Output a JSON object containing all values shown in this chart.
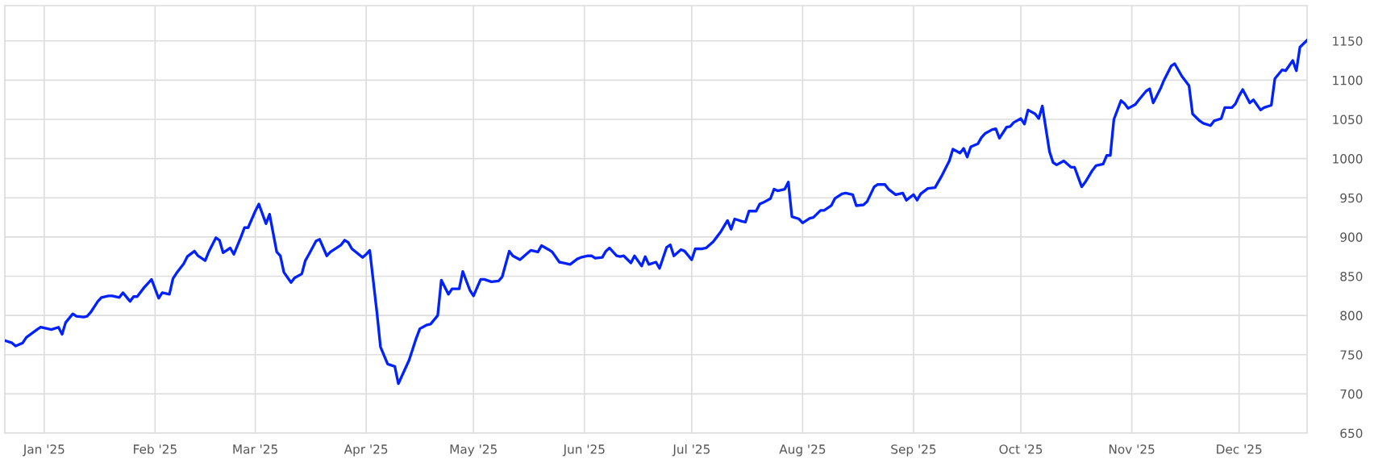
{
  "chart_data": {
    "type": "line",
    "x": [
      "2024-12-21",
      "2024-12-23",
      "2024-12-24",
      "2024-12-26",
      "2024-12-27",
      "2024-12-30",
      "2024-12-31",
      "2025-01-02",
      "2025-01-03",
      "2025-01-05",
      "2025-01-06",
      "2025-01-07",
      "2025-01-09",
      "2025-01-10",
      "2025-01-12",
      "2025-01-13",
      "2025-01-14",
      "2025-01-16",
      "2025-01-17",
      "2025-01-19",
      "2025-01-20",
      "2025-01-22",
      "2025-01-23",
      "2025-01-25",
      "2025-01-26",
      "2025-01-27",
      "2025-01-29",
      "2025-01-30",
      "2025-01-31",
      "2025-02-02",
      "2025-02-03",
      "2025-02-05",
      "2025-02-06",
      "2025-02-07",
      "2025-02-09",
      "2025-02-10",
      "2025-02-12",
      "2025-02-13",
      "2025-02-15",
      "2025-02-16",
      "2025-02-18",
      "2025-02-19",
      "2025-02-20",
      "2025-02-22",
      "2025-02-23",
      "2025-02-25",
      "2025-02-26",
      "2025-02-27",
      "2025-03-01",
      "2025-03-02",
      "2025-03-04",
      "2025-03-05",
      "2025-03-07",
      "2025-03-08",
      "2025-03-09",
      "2025-03-11",
      "2025-03-12",
      "2025-03-14",
      "2025-03-15",
      "2025-03-16",
      "2025-03-18",
      "2025-03-19",
      "2025-03-21",
      "2025-03-22",
      "2025-03-24",
      "2025-03-25",
      "2025-03-26",
      "2025-03-27",
      "2025-03-28",
      "2025-03-31",
      "2025-04-01",
      "2025-04-02",
      "2025-04-04",
      "2025-04-05",
      "2025-04-07",
      "2025-04-09",
      "2025-04-10",
      "2025-04-12",
      "2025-04-13",
      "2025-04-15",
      "2025-04-16",
      "2025-04-18",
      "2025-04-19",
      "2025-04-21",
      "2025-04-22",
      "2025-04-24",
      "2025-04-25",
      "2025-04-27",
      "2025-04-28",
      "2025-04-30",
      "2025-05-01",
      "2025-05-03",
      "2025-05-04",
      "2025-05-06",
      "2025-05-08",
      "2025-05-09",
      "2025-05-11",
      "2025-05-12",
      "2025-05-14",
      "2025-05-16",
      "2025-05-17",
      "2025-05-19",
      "2025-05-20",
      "2025-05-22",
      "2025-05-23",
      "2025-05-25",
      "2025-05-26",
      "2025-05-28",
      "2025-05-30",
      "2025-05-31",
      "2025-06-02",
      "2025-06-03",
      "2025-06-04",
      "2025-06-06",
      "2025-06-07",
      "2025-06-08",
      "2025-06-10",
      "2025-06-11",
      "2025-06-12",
      "2025-06-14",
      "2025-06-15",
      "2025-06-17",
      "2025-06-18",
      "2025-06-19",
      "2025-06-21",
      "2025-06-22",
      "2025-06-24",
      "2025-06-25",
      "2025-06-26",
      "2025-06-28",
      "2025-06-29",
      "2025-07-01",
      "2025-07-02",
      "2025-07-04",
      "2025-07-05",
      "2025-07-07",
      "2025-07-08",
      "2025-07-09",
      "2025-07-11",
      "2025-07-12",
      "2025-07-13",
      "2025-07-15",
      "2025-07-16",
      "2025-07-17",
      "2025-07-19",
      "2025-07-20",
      "2025-07-21",
      "2025-07-23",
      "2025-07-24",
      "2025-07-25",
      "2025-07-27",
      "2025-07-28",
      "2025-07-29",
      "2025-07-31",
      "2025-08-01",
      "2025-08-03",
      "2025-08-04",
      "2025-08-06",
      "2025-08-07",
      "2025-08-09",
      "2025-08-10",
      "2025-08-12",
      "2025-08-13",
      "2025-08-15",
      "2025-08-16",
      "2025-08-18",
      "2025-08-19",
      "2025-08-21",
      "2025-08-22",
      "2025-08-24",
      "2025-08-25",
      "2025-08-27",
      "2025-08-29",
      "2025-08-30",
      "2025-09-01",
      "2025-09-02",
      "2025-09-03",
      "2025-09-05",
      "2025-09-07",
      "2025-09-08",
      "2025-09-09",
      "2025-09-11",
      "2025-09-12",
      "2025-09-14",
      "2025-09-15",
      "2025-09-16",
      "2025-09-17",
      "2025-09-19",
      "2025-09-20",
      "2025-09-21",
      "2025-09-23",
      "2025-09-24",
      "2025-09-25",
      "2025-09-27",
      "2025-09-28",
      "2025-09-29",
      "2025-10-01",
      "2025-10-02",
      "2025-10-03",
      "2025-10-05",
      "2025-10-06",
      "2025-10-07",
      "2025-10-09",
      "2025-10-10",
      "2025-10-11",
      "2025-10-13",
      "2025-10-15",
      "2025-10-16",
      "2025-10-18",
      "2025-10-19",
      "2025-10-21",
      "2025-10-22",
      "2025-10-24",
      "2025-10-25",
      "2025-10-26",
      "2025-10-27",
      "2025-10-29",
      "2025-10-30",
      "2025-10-31",
      "2025-11-02",
      "2025-11-03",
      "2025-11-05",
      "2025-11-06",
      "2025-11-07",
      "2025-11-09",
      "2025-11-10",
      "2025-11-12",
      "2025-11-13",
      "2025-11-15",
      "2025-11-17",
      "2025-11-18",
      "2025-11-20",
      "2025-11-21",
      "2025-11-23",
      "2025-11-24",
      "2025-11-26",
      "2025-11-27",
      "2025-11-29",
      "2025-11-30",
      "2025-12-01",
      "2025-12-02",
      "2025-12-04",
      "2025-12-05",
      "2025-12-07",
      "2025-12-08",
      "2025-12-10",
      "2025-12-11",
      "2025-12-13",
      "2025-12-14",
      "2025-12-16",
      "2025-12-17",
      "2025-12-18",
      "2025-12-20"
    ],
    "series": [
      {
        "color": "#0022ff",
        "values": [
          768,
          765,
          761,
          765,
          772,
          782,
          785,
          783,
          782,
          785,
          776,
          791,
          802,
          799,
          798,
          799,
          804,
          818,
          823,
          825,
          825,
          823,
          829,
          818,
          824,
          824,
          836,
          841,
          846,
          822,
          829,
          827,
          847,
          854,
          866,
          875,
          882,
          876,
          870,
          881,
          899,
          896,
          880,
          886,
          878,
          900,
          912,
          912,
          933,
          942,
          917,
          929,
          881,
          876,
          855,
          842,
          848,
          853,
          870,
          878,
          895,
          897,
          876,
          881,
          887,
          890,
          896,
          893,
          885,
          874,
          878,
          883,
          804,
          760,
          738,
          735,
          713,
          733,
          743,
          771,
          783,
          788,
          789,
          800,
          845,
          827,
          834,
          834,
          856,
          832,
          825,
          846,
          846,
          843,
          844,
          849,
          882,
          876,
          871,
          879,
          883,
          881,
          889,
          884,
          881,
          868,
          867,
          865,
          872,
          874,
          876,
          876,
          873,
          874,
          882,
          886,
          876,
          875,
          876,
          867,
          876,
          863,
          875,
          865,
          868,
          860,
          887,
          890,
          876,
          884,
          882,
          871,
          885,
          885,
          886,
          894,
          900,
          906,
          921,
          910,
          923,
          920,
          919,
          933,
          933,
          942,
          944,
          949,
          961,
          959,
          961,
          970,
          926,
          923,
          918,
          924,
          925,
          934,
          934,
          940,
          949,
          955,
          956,
          954,
          940,
          941,
          945,
          964,
          967,
          967,
          961,
          954,
          956,
          947,
          954,
          947,
          955,
          962,
          963,
          971,
          979,
          997,
          1012,
          1007,
          1013,
          1002,
          1015,
          1019,
          1027,
          1032,
          1037,
          1038,
          1026,
          1040,
          1041,
          1046,
          1051,
          1044,
          1062,
          1057,
          1051,
          1067,
          1009,
          995,
          992,
          997,
          989,
          989,
          964,
          970,
          985,
          991,
          993,
          1004,
          1004,
          1050,
          1074,
          1070,
          1064,
          1069,
          1075,
          1086,
          1089,
          1071,
          1089,
          1100,
          1118,
          1121,
          1105,
          1093,
          1057,
          1048,
          1045,
          1042,
          1048,
          1051,
          1065,
          1065,
          1070,
          1080,
          1088,
          1071,
          1075,
          1062,
          1065,
          1068,
          1102,
          1113,
          1112,
          1125,
          1112,
          1142,
          1151
        ]
      }
    ],
    "xlim": [
      "2024-12-21",
      "2025-12-20"
    ],
    "xticks": [
      {
        "value": "2025-01-01",
        "label": "Jan '25"
      },
      {
        "value": "2025-02-01",
        "label": "Feb '25"
      },
      {
        "value": "2025-03-01",
        "label": "Mar '25"
      },
      {
        "value": "2025-04-01",
        "label": "Apr '25"
      },
      {
        "value": "2025-05-01",
        "label": "May '25"
      },
      {
        "value": "2025-06-01",
        "label": "Jun '25"
      },
      {
        "value": "2025-07-01",
        "label": "Jul '25"
      },
      {
        "value": "2025-08-01",
        "label": "Aug '25"
      },
      {
        "value": "2025-09-01",
        "label": "Sep '25"
      },
      {
        "value": "2025-10-01",
        "label": "Oct '25"
      },
      {
        "value": "2025-11-01",
        "label": "Nov '25"
      },
      {
        "value": "2025-12-01",
        "label": "Dec '25"
      }
    ],
    "ylim": [
      650,
      1195
    ],
    "yticks": [
      650,
      700,
      750,
      800,
      850,
      900,
      950,
      1000,
      1050,
      1100,
      1150
    ],
    "grid": true,
    "line_style": "solid",
    "marker": "none"
  }
}
